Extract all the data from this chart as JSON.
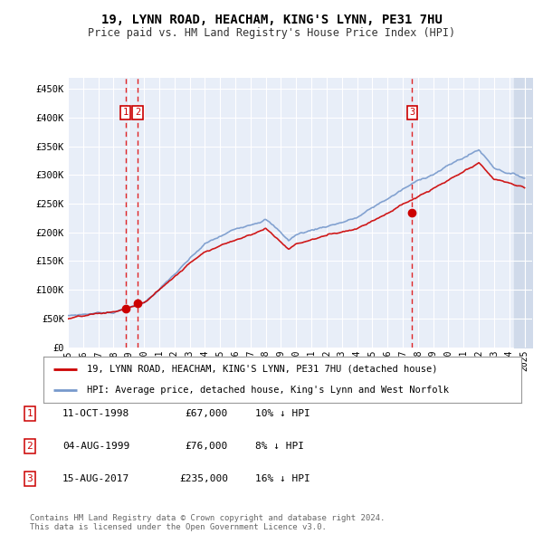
{
  "title": "19, LYNN ROAD, HEACHAM, KING'S LYNN, PE31 7HU",
  "subtitle": "Price paid vs. HM Land Registry's House Price Index (HPI)",
  "ylabel_ticks": [
    "£0",
    "£50K",
    "£100K",
    "£150K",
    "£200K",
    "£250K",
    "£300K",
    "£350K",
    "£400K",
    "£450K"
  ],
  "ytick_values": [
    0,
    50000,
    100000,
    150000,
    200000,
    250000,
    300000,
    350000,
    400000,
    450000
  ],
  "ylim": [
    0,
    470000
  ],
  "xlim_start": 1995.0,
  "xlim_end": 2025.5,
  "sale_dates": [
    1998.78,
    1999.58,
    2017.62
  ],
  "sale_prices": [
    67000,
    76000,
    235000
  ],
  "sale_labels": [
    "1",
    "2",
    "3"
  ],
  "dashed_line_color": "#dd0000",
  "sale_dot_color": "#cc0000",
  "hpi_line_color": "#7799cc",
  "price_line_color": "#cc0000",
  "legend_entries": [
    "19, LYNN ROAD, HEACHAM, KING'S LYNN, PE31 7HU (detached house)",
    "HPI: Average price, detached house, King's Lynn and West Norfolk"
  ],
  "table_rows": [
    [
      "1",
      "11-OCT-1998",
      "£67,000",
      "10% ↓ HPI"
    ],
    [
      "2",
      "04-AUG-1999",
      "£76,000",
      "8% ↓ HPI"
    ],
    [
      "3",
      "15-AUG-2017",
      "£235,000",
      "16% ↓ HPI"
    ]
  ],
  "footnote": "Contains HM Land Registry data © Crown copyright and database right 2024.\nThis data is licensed under the Open Government Licence v3.0.",
  "background_color": "#ffffff",
  "plot_bg_color": "#e8eef8",
  "grid_color": "#ffffff",
  "hatch_fill_color": "#d0daea"
}
